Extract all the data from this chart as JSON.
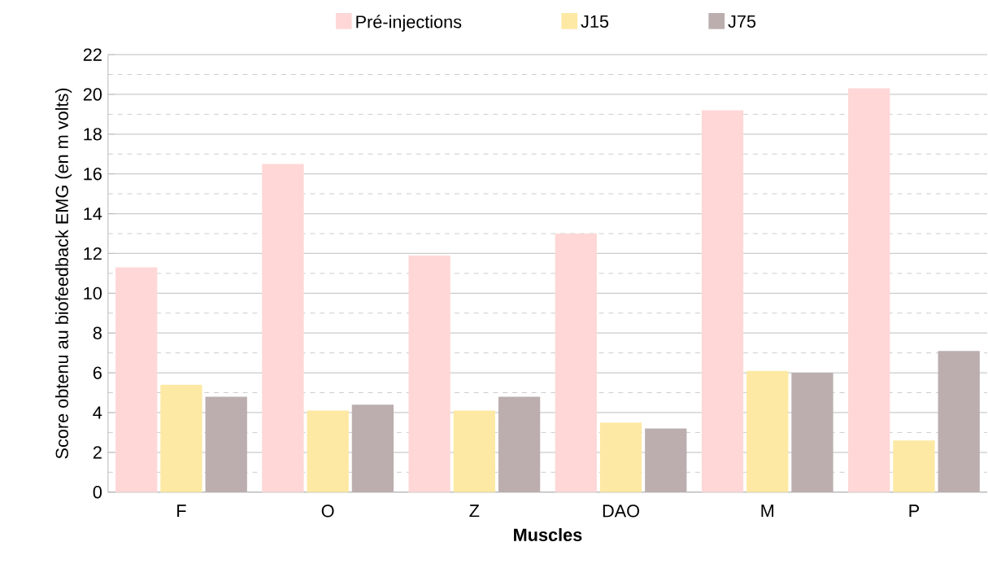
{
  "chart_data": {
    "type": "bar",
    "xlabel": "Muscles",
    "ylabel": "Score obtenu au biofeedback EMG (en m volts)",
    "categories": [
      "F",
      "O",
      "Z",
      "DAO",
      "M",
      "P"
    ],
    "series": [
      {
        "name": "Pré-injections",
        "color": "#ffd7d7",
        "values": [
          11.3,
          16.5,
          11.9,
          13.0,
          19.2,
          20.3
        ]
      },
      {
        "name": "J15",
        "color": "#fde9a3",
        "values": [
          5.4,
          4.1,
          4.1,
          3.5,
          6.1,
          2.6
        ]
      },
      {
        "name": "J75",
        "color": "#bcaeae",
        "values": [
          4.8,
          4.4,
          4.8,
          3.2,
          6.0,
          7.1
        ]
      }
    ],
    "ylim": [
      0,
      22
    ],
    "yticks": [
      0,
      2,
      4,
      6,
      8,
      10,
      12,
      14,
      16,
      18,
      20,
      22
    ],
    "grid": "y",
    "legend": "top"
  }
}
